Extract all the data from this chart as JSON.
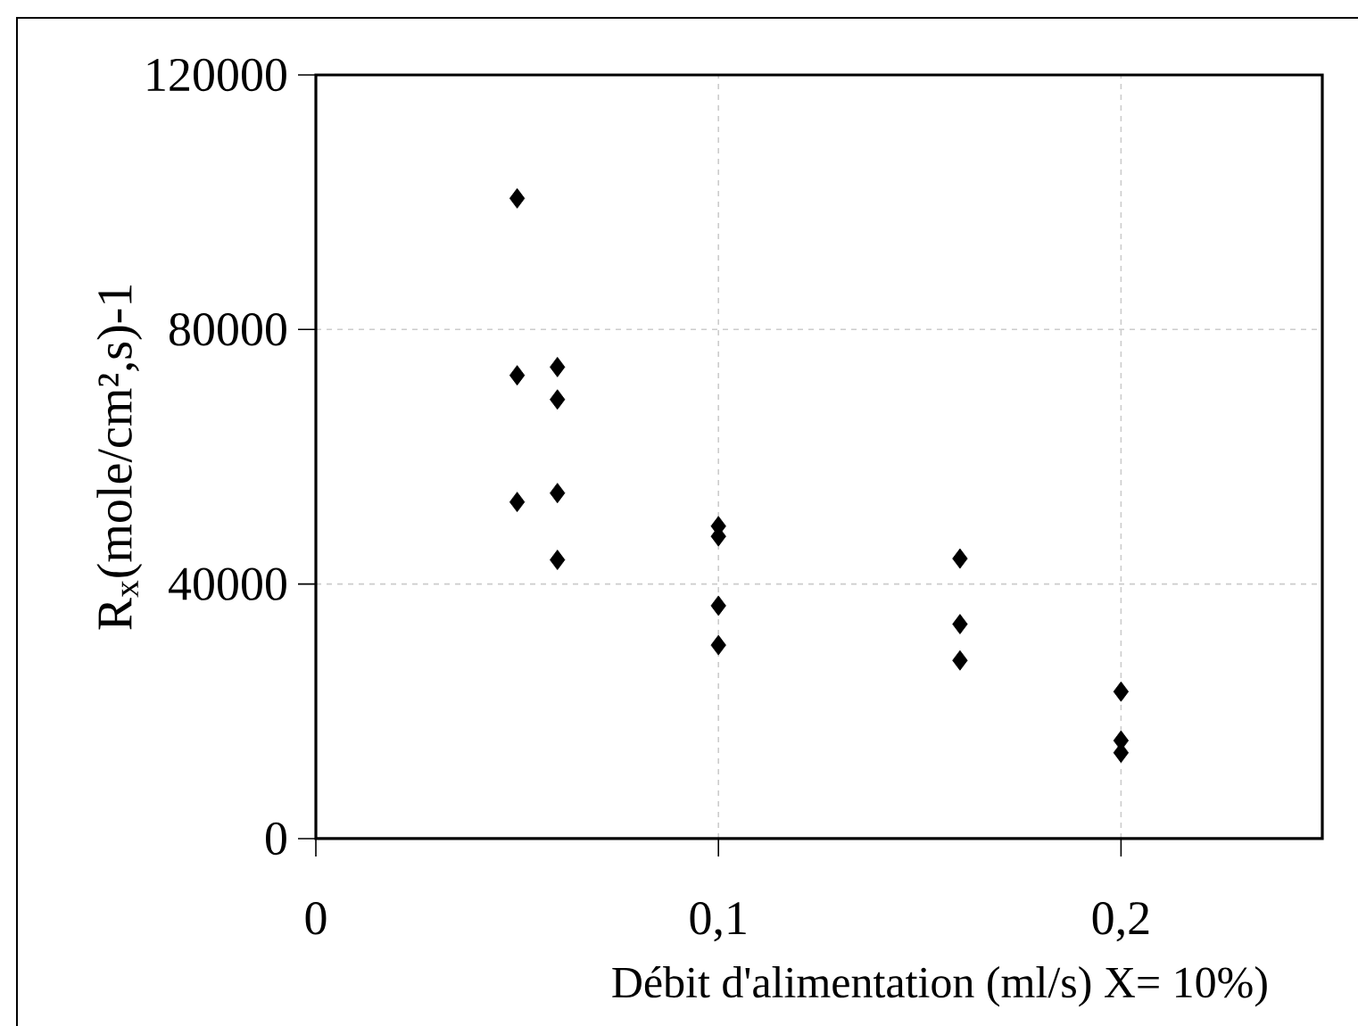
{
  "chart_data": {
    "type": "scatter",
    "xlabel": "Débit d'alimentation (ml/s) X= 10%)",
    "ylabel": "R$_{x}$(mole/cm²,s)-1",
    "series": [
      {
        "color": "#000000",
        "x": [
          0.05,
          0.05,
          0.05,
          0.06,
          0.06,
          0.06,
          0.06,
          0.1,
          0.1,
          0.1,
          0.1,
          0.16,
          0.16,
          0.16,
          0.2,
          0.2,
          0.2
        ],
        "values": [
          100600,
          72800,
          52900,
          74100,
          69000,
          54300,
          43800,
          49100,
          47500,
          36600,
          30400,
          44000,
          33700,
          28000,
          23100,
          15400,
          13500
        ]
      }
    ],
    "xlim": [
      0,
      0.25
    ],
    "ylim": [
      0,
      120000
    ],
    "xticks": [
      0,
      {
        "value": 0.1,
        "label": "0,1"
      },
      {
        "value": 0.2,
        "label": "0,2"
      }
    ],
    "yticks": [
      0,
      40000,
      80000,
      120000
    ],
    "grid": true,
    "marker": "diamond"
  }
}
